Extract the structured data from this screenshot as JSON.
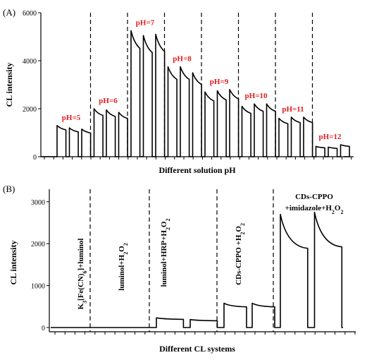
{
  "chart_data": [
    {
      "type": "line",
      "panel_label": "(A)",
      "xlabel": "Different solution pH",
      "ylabel": "CL intensity",
      "ylim": [
        0,
        6000
      ],
      "yticks": [
        0,
        2000,
        4000,
        6000
      ],
      "label_color": "#e31a1c",
      "groups": [
        {
          "label": "pH=5",
          "peaks": [
            1300,
            1200,
            1150
          ]
        },
        {
          "label": "pH=6",
          "peaks": [
            2000,
            1950,
            1850
          ]
        },
        {
          "label": "pH=7",
          "peaks": [
            5250,
            5050,
            5100
          ]
        },
        {
          "label": "pH=8",
          "peaks": [
            3750,
            3750,
            3500
          ]
        },
        {
          "label": "pH=9",
          "peaks": [
            2700,
            2750,
            2800
          ]
        },
        {
          "label": "pH=10",
          "peaks": [
            2100,
            2200,
            2200
          ]
        },
        {
          "label": "pH=11",
          "peaks": [
            1600,
            1650,
            1650
          ]
        },
        {
          "label": "pH=12",
          "peaks": [
            430,
            400,
            500
          ]
        }
      ]
    },
    {
      "type": "line",
      "panel_label": "(B)",
      "xlabel": "Different CL systems",
      "ylabel": "CL intensity",
      "ylim": [
        0,
        3300
      ],
      "yticks": [
        0,
        1000,
        2000,
        3000
      ],
      "groups": [
        {
          "label": "K3[Fe(CN)6]+luminol",
          "peaks": [
            0
          ]
        },
        {
          "label": "luminol+H2O2",
          "peaks": [
            0
          ]
        },
        {
          "label": "luminol+HRP+H2O2",
          "peaks": [
            230,
            190
          ]
        },
        {
          "label": "CDs-CPPO +H2O2",
          "peaks": [
            580,
            580
          ]
        },
        {
          "label": "CDs-CPPO +imidazole+H2O2",
          "peaks": [
            2700,
            2750
          ]
        }
      ]
    }
  ]
}
